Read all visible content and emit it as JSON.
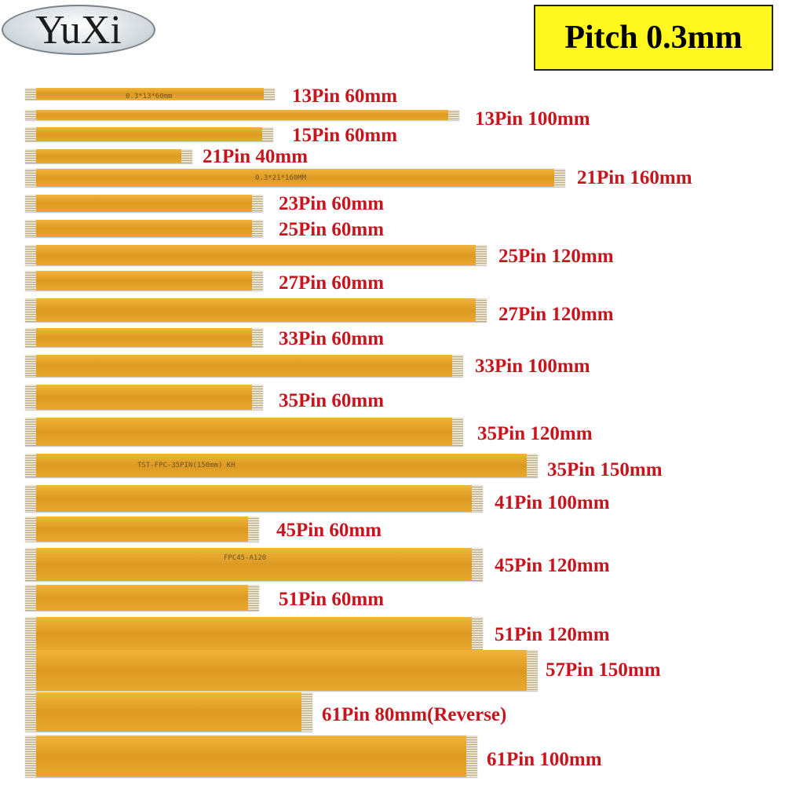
{
  "brand": "YuXi",
  "badge": "Pitch 0.3mm",
  "imprints": [
    "0.3*13*60mm",
    "0.3*21*160MM",
    "TST-FPC-35PIN(150mm)  KH",
    "FPC45-A120"
  ],
  "cables": [
    "13Pin 60mm",
    "13Pin 100mm",
    "15Pin 60mm",
    "21Pin 40mm",
    "21Pin 160mm",
    "23Pin 60mm",
    "25Pin 60mm",
    "25Pin 120mm",
    "27Pin 60mm",
    "27Pin 120mm",
    "33Pin 60mm",
    "33Pin 100mm",
    "35Pin 60mm",
    "35Pin 120mm",
    "35Pin 150mm",
    "41Pin 100mm",
    "45Pin 60mm",
    "45Pin 120mm",
    "51Pin 60mm",
    "51Pin 120mm",
    "57Pin 150mm",
    "61Pin 80mm(Reverse)",
    "61Pin 100mm"
  ]
}
